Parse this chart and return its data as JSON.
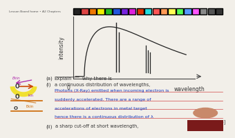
{
  "bg_color": "#f2efe9",
  "toolbar_bg": "#ddd8d0",
  "graph": {
    "x_label": "wavelength",
    "y_label": "intensity",
    "origin_label": "0"
  },
  "toolbar_text": "Lesson Board home • A2 Chapters",
  "marker_colors": [
    "#222222",
    "#444444",
    "#cc2222",
    "#dd6600",
    "#dddd00",
    "#22aa22",
    "#2244cc",
    "#6622cc",
    "#cc22cc",
    "#cc2200",
    "#22cccc",
    "#cc4444",
    "#ff8844",
    "#ffee44",
    "#44ee44",
    "#4488ff",
    "#ee44ff",
    "#aaaaaa",
    "#555555"
  ],
  "question_text": "(a)   Explain why there is",
  "sub_i": "(i)    a continuous distribution of wavelengths,",
  "answer1": "Photons (X-Ray) emitted when incoming electron is",
  "answer2": "suddenly accelerated. There are a range of",
  "answer3": "accelerations of electrons in metal target",
  "answer4": "hence there is a continuous distribution of λ",
  "mark": "[3]",
  "sub_ii": "(ii)   a sharp cut-off at short wavelength,",
  "left_labels": [
    "Ekin",
    "O",
    "O",
    "O"
  ],
  "person_color": "#7a1a1a"
}
